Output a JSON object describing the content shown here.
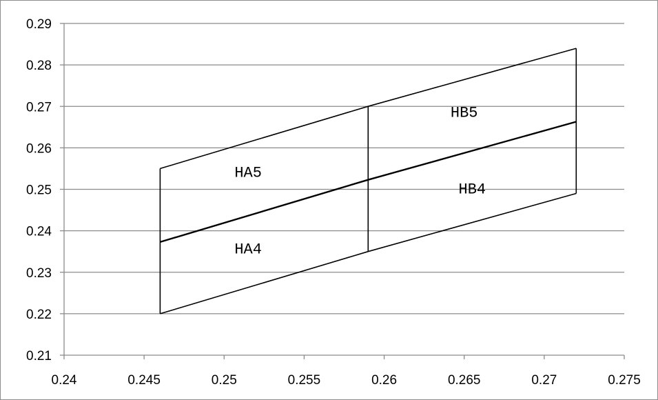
{
  "chart_data": {
    "type": "line",
    "title": "",
    "xlabel": "",
    "ylabel": "",
    "xlim": [
      0.24,
      0.275
    ],
    "ylim": [
      0.21,
      0.29
    ],
    "x_ticks": [
      0.24,
      0.245,
      0.25,
      0.255,
      0.26,
      0.265,
      0.27,
      0.275
    ],
    "x_tick_labels": [
      "0.24",
      "0.245",
      "0.25",
      "0.255",
      "0.26",
      "0.265",
      "0.27",
      "0.275"
    ],
    "y_ticks": [
      0.21,
      0.22,
      0.23,
      0.24,
      0.25,
      0.26,
      0.27,
      0.28,
      0.29
    ],
    "y_tick_labels": [
      "0.21",
      "0.22",
      "0.23",
      "0.24",
      "0.25",
      "0.26",
      "0.27",
      "0.28",
      "0.29"
    ],
    "grid": "horizontal",
    "legend": "none",
    "line_color": "#000000",
    "series": [
      {
        "x": [
          0.246,
          0.259,
          0.272
        ],
        "y": [
          0.255,
          0.27,
          0.284
        ]
      },
      {
        "x": [
          0.246,
          0.259,
          0.272
        ],
        "y": [
          0.2373,
          0.2523,
          0.2663
        ]
      },
      {
        "x": [
          0.246,
          0.259,
          0.272
        ],
        "y": [
          0.22,
          0.235,
          0.249
        ]
      },
      {
        "x": [
          0.246,
          0.246
        ],
        "y": [
          0.22,
          0.255
        ]
      },
      {
        "x": [
          0.259,
          0.259
        ],
        "y": [
          0.235,
          0.27
        ]
      },
      {
        "x": [
          0.272,
          0.272
        ],
        "y": [
          0.249,
          0.284
        ]
      }
    ],
    "annotations": [
      {
        "text": "HA5",
        "x": 0.2515,
        "y": 0.253
      },
      {
        "text": "HA4",
        "x": 0.2515,
        "y": 0.2345
      },
      {
        "text": "HB5",
        "x": 0.265,
        "y": 0.2675
      },
      {
        "text": "HB4",
        "x": 0.2655,
        "y": 0.249
      }
    ]
  }
}
